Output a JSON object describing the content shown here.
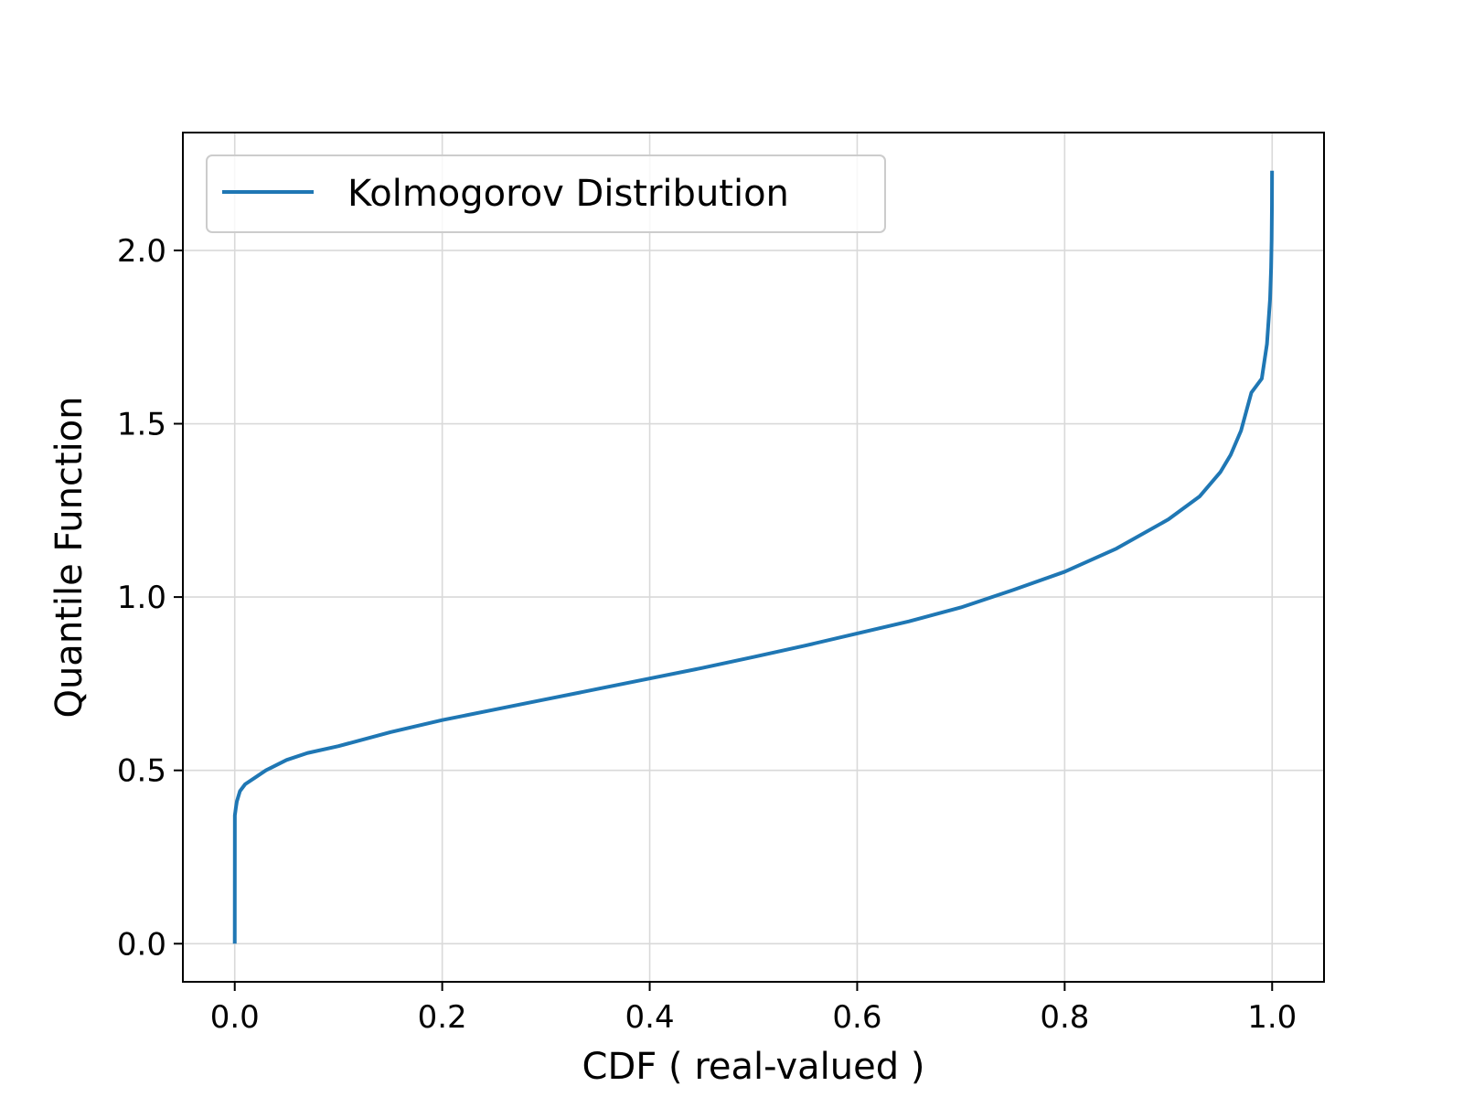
{
  "chart_data": {
    "type": "line",
    "title": "",
    "xlabel": "CDF ( real-valued )",
    "ylabel": "Quantile Function",
    "xlim": [
      -0.05,
      1.05
    ],
    "ylim": [
      -0.11,
      2.34
    ],
    "xticks": [
      0.0,
      0.2,
      0.4,
      0.6,
      0.8,
      1.0
    ],
    "xtick_labels": [
      "0.0",
      "0.2",
      "0.4",
      "0.6",
      "0.8",
      "1.0"
    ],
    "yticks": [
      0.0,
      0.5,
      1.0,
      1.5,
      2.0
    ],
    "ytick_labels": [
      "0.0",
      "0.5",
      "1.0",
      "1.5",
      "2.0"
    ],
    "grid": true,
    "legend_position": "top-left",
    "series": [
      {
        "name": "Kolmogorov Distribution",
        "color": "#1f77b4",
        "x": [
          0.0,
          0.0001,
          0.001,
          0.002,
          0.005,
          0.01,
          0.02,
          0.03,
          0.05,
          0.07,
          0.1,
          0.15,
          0.2,
          0.25,
          0.3,
          0.35,
          0.4,
          0.45,
          0.5,
          0.55,
          0.6,
          0.65,
          0.7,
          0.75,
          0.8,
          0.85,
          0.9,
          0.93,
          0.95,
          0.96,
          0.97,
          0.98,
          0.99,
          0.995,
          0.998,
          0.999,
          0.9995,
          0.9998,
          0.9999
        ],
        "y": [
          0.0,
          0.37,
          0.39,
          0.41,
          0.44,
          0.46,
          0.48,
          0.5,
          0.53,
          0.55,
          0.57,
          0.61,
          0.645,
          0.675,
          0.705,
          0.735,
          0.765,
          0.795,
          0.827,
          0.86,
          0.895,
          0.93,
          0.97,
          1.02,
          1.073,
          1.14,
          1.224,
          1.29,
          1.36,
          1.41,
          1.48,
          1.59,
          1.63,
          1.73,
          1.86,
          1.95,
          2.03,
          2.13,
          2.23
        ]
      }
    ]
  }
}
